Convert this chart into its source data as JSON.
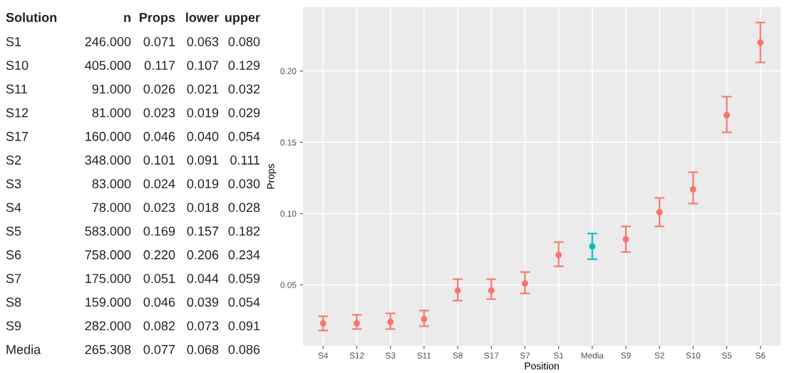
{
  "chart_data": [
    {
      "type": "other",
      "categories": [
        "Solution",
        "n",
        "Props",
        "lower",
        "upper"
      ],
      "cell_labels": [
        [
          "S1",
          "246.000",
          "0.071",
          "0.063",
          "0.080"
        ],
        [
          "S10",
          "405.000",
          "0.117",
          "0.107",
          "0.129"
        ],
        [
          "S11",
          "91.000",
          "0.026",
          "0.021",
          "0.032"
        ],
        [
          "S12",
          "81.000",
          "0.023",
          "0.019",
          "0.029"
        ],
        [
          "S17",
          "160.000",
          "0.046",
          "0.040",
          "0.054"
        ],
        [
          "S2",
          "348.000",
          "0.101",
          "0.091",
          "0.111"
        ],
        [
          "S3",
          "83.000",
          "0.024",
          "0.019",
          "0.030"
        ],
        [
          "S4",
          "78.000",
          "0.023",
          "0.018",
          "0.028"
        ],
        [
          "S5",
          "583.000",
          "0.169",
          "0.157",
          "0.182"
        ],
        [
          "S6",
          "758.000",
          "0.220",
          "0.206",
          "0.234"
        ],
        [
          "S7",
          "175.000",
          "0.051",
          "0.044",
          "0.059"
        ],
        [
          "S8",
          "159.000",
          "0.046",
          "0.039",
          "0.054"
        ],
        [
          "S9",
          "282.000",
          "0.082",
          "0.073",
          "0.091"
        ],
        [
          "Media",
          "265.308",
          "0.077",
          "0.068",
          "0.086"
        ]
      ]
    },
    {
      "type": "scatter",
      "xlabel": "Position",
      "ylabel": "Props",
      "marker": "circle",
      "grid": true,
      "categories": [
        "S4",
        "S12",
        "S3",
        "S11",
        "S8",
        "S17",
        "S7",
        "S1",
        "Media",
        "S9",
        "S2",
        "S10",
        "S5",
        "S6"
      ],
      "values": [
        0.023,
        0.023,
        0.024,
        0.026,
        0.046,
        0.046,
        0.051,
        0.071,
        0.077,
        0.082,
        0.101,
        0.117,
        0.169,
        0.22
      ],
      "errors": [
        [
          0.018,
          0.028
        ],
        [
          0.019,
          0.029
        ],
        [
          0.019,
          0.03
        ],
        [
          0.021,
          0.032
        ],
        [
          0.039,
          0.054
        ],
        [
          0.04,
          0.054
        ],
        [
          0.044,
          0.059
        ],
        [
          0.063,
          0.08
        ],
        [
          0.068,
          0.086
        ],
        [
          0.073,
          0.091
        ],
        [
          0.091,
          0.111
        ],
        [
          0.107,
          0.129
        ],
        [
          0.157,
          0.182
        ],
        [
          0.206,
          0.234
        ]
      ],
      "colors": [
        "#f8766d",
        "#f8766d",
        "#f8766d",
        "#f8766d",
        "#f8766d",
        "#f8766d",
        "#f8766d",
        "#f8766d",
        "#00bfc4",
        "#f8766d",
        "#f8766d",
        "#f8766d",
        "#f8766d",
        "#f8766d"
      ],
      "ylim": [
        0.0072,
        0.2448
      ],
      "yticks": [
        {
          "value": 0.05,
          "label": "0.05"
        },
        {
          "value": 0.1,
          "label": "0.10"
        },
        {
          "value": 0.15,
          "label": "0.15"
        },
        {
          "value": 0.2,
          "label": "0.20"
        }
      ]
    }
  ]
}
